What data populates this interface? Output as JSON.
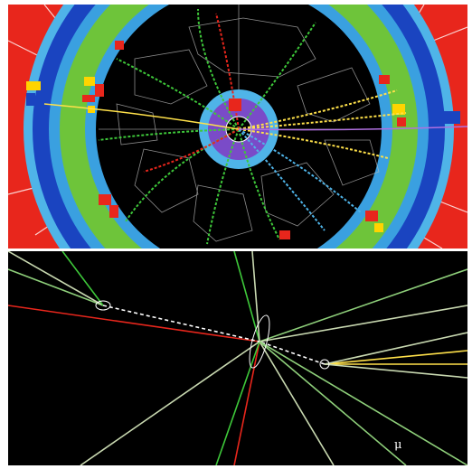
{
  "bottom_panel": {
    "particle_label": "μ"
  }
}
